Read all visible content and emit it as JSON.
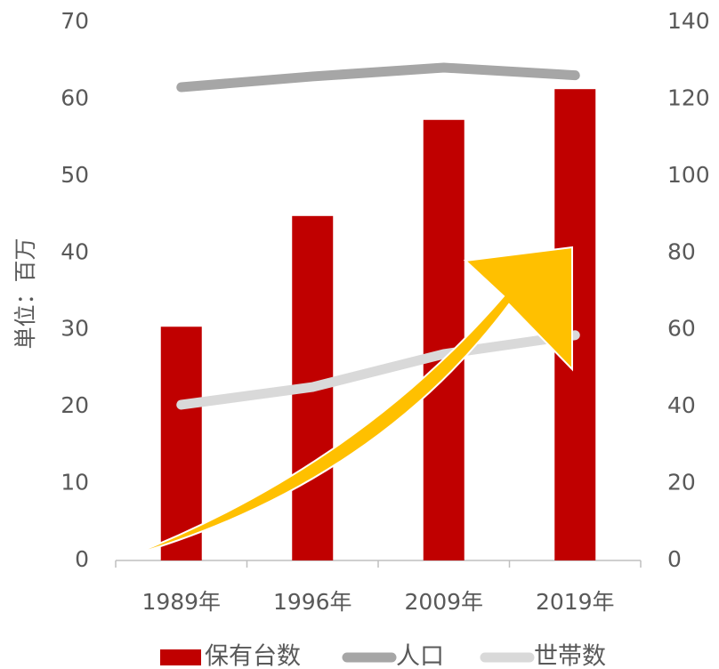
{
  "chart_data": {
    "type": "bar",
    "y_axis_label": "単位：百万",
    "categories": [
      "1989年",
      "1996年",
      "2009年",
      "2019年"
    ],
    "series": [
      {
        "name": "保有台数",
        "color": "#c00000",
        "type": "bar",
        "values": [
          30.4,
          44.8,
          57.3,
          61.3
        ]
      },
      {
        "name": "人口",
        "color": "#a6a6a6",
        "type": "line",
        "axis": "y2",
        "values": [
          123.1,
          125.9,
          128.2,
          126.2
        ]
      },
      {
        "name": "世帯数",
        "color": "#d9d9d9",
        "type": "line",
        "axis": "y2",
        "values": [
          40.5,
          45.1,
          53.7,
          58.6
        ]
      }
    ],
    "ylim": [
      0,
      70
    ],
    "yticks": [
      0,
      10,
      20,
      30,
      40,
      50,
      60,
      70
    ],
    "y2lim": [
      0,
      140
    ],
    "y2ticks": [
      0,
      20,
      40,
      60,
      80,
      100,
      120,
      140
    ],
    "legend": "bottom"
  }
}
